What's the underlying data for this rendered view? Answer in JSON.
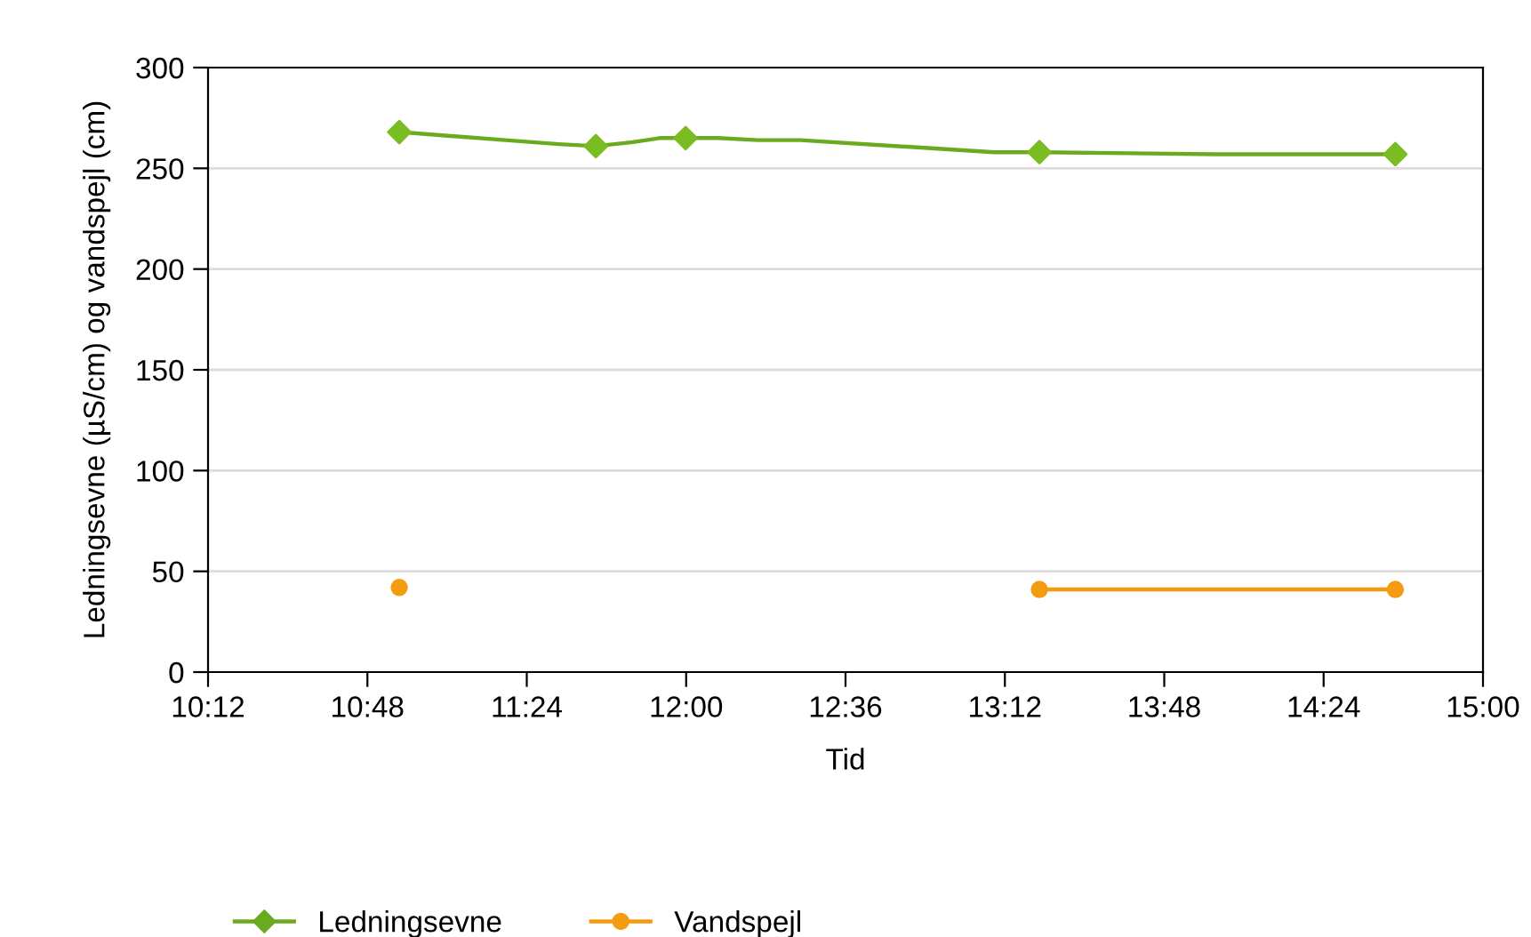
{
  "chart_data": {
    "type": "line",
    "xlabel": "Tid",
    "ylabel": "Ledningsevne (µS/cm) og vandspejl (cm)",
    "series": [
      {
        "name": "Ledningsevne",
        "color": "#6aaa1e",
        "marker": "none",
        "x": [
          10.92,
          11.32,
          11.52,
          11.66,
          11.8,
          11.9,
          11.998,
          12.12,
          12.27,
          12.43,
          13.16,
          13.33,
          13.99,
          14.67
        ],
        "values": [
          268,
          264,
          262,
          261,
          263,
          265,
          265,
          265,
          264,
          264,
          258,
          258,
          257,
          257
        ]
      },
      {
        "type": "scatter",
        "color": "#7abd22",
        "marker": "diamond",
        "x": [
          10.92,
          11.66,
          11.998,
          13.33,
          14.67
        ],
        "values": [
          268,
          261,
          265,
          258,
          257
        ]
      },
      {
        "name": "Vandspejl",
        "color": "#f39c12",
        "marker": "circle",
        "x": [
          10.92,
          12.1,
          13.33,
          14.67
        ],
        "values": [
          42,
          null,
          41,
          41
        ]
      }
    ],
    "xlim": [
      10.2,
      15.0
    ],
    "xticks": [
      {
        "value": 10.2,
        "label": "10:12"
      },
      {
        "value": 10.8,
        "label": "10:48"
      },
      {
        "value": 11.4,
        "label": "11:24"
      },
      {
        "value": 12.0,
        "label": "12:00"
      },
      {
        "value": 12.6,
        "label": "12:36"
      },
      {
        "value": 13.2,
        "label": "13:12"
      },
      {
        "value": 13.8,
        "label": "13:48"
      },
      {
        "value": 14.4,
        "label": "14:24"
      },
      {
        "value": 15.0,
        "label": "15:00"
      }
    ],
    "ylim": [
      0,
      300
    ],
    "yticks": [
      0,
      50,
      100,
      150,
      200,
      250,
      300
    ],
    "grid": "y",
    "legend": "bottom left"
  }
}
